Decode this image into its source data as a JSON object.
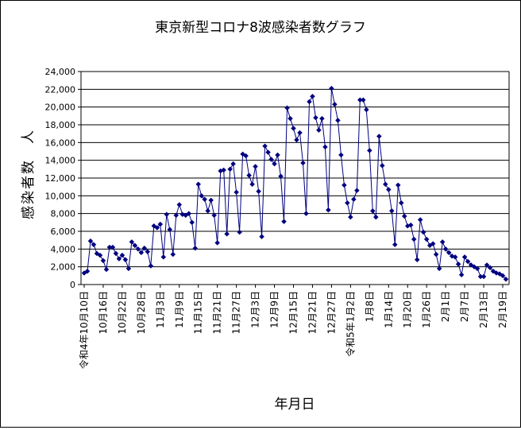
{
  "chart_data": {
    "type": "line",
    "title": "東京新型コロナ8波感染者数グラフ",
    "xlabel": "年月日",
    "ylabel": "感染者数　人",
    "ylim": [
      0,
      24000
    ],
    "yticks": [
      "0",
      "2,000",
      "4,000",
      "6,000",
      "8,000",
      "10,000",
      "12,000",
      "14,000",
      "16,000",
      "18,000",
      "20,000",
      "22,000",
      "24,000"
    ],
    "xtick_labels": [
      "令和4年10月10日",
      "10月16日",
      "10月22日",
      "10月28日",
      "11月3日",
      "11月9日",
      "11月15日",
      "11月21日",
      "11月27日",
      "12月3日",
      "12月9日",
      "12月15日",
      "12月21日",
      "12月27日",
      "令和5年1月2日",
      "1月8日",
      "1月14日",
      "1月20日",
      "1月26日",
      "2月1日",
      "2月7日",
      "2月13日",
      "2月19日"
    ],
    "grid": "horizontal",
    "legend": "none",
    "marker": "diamond",
    "color": "#000080",
    "series": [
      {
        "values": [
          1300,
          1500,
          4900,
          4500,
          3500,
          3300,
          2700,
          1700,
          4200,
          4200,
          3500,
          2900,
          3300,
          2800,
          1800,
          4800,
          4400,
          4000,
          3600,
          4100,
          3700,
          2100,
          6600,
          6400,
          6800,
          3100,
          7900,
          6200,
          3400,
          7800,
          9000,
          7900,
          7800,
          8000,
          7000,
          4100,
          11300,
          10000,
          9600,
          8300,
          9500,
          7800,
          4700,
          12800,
          12900,
          5700,
          13000,
          13600,
          10400,
          5900,
          14700,
          14500,
          12300,
          11300,
          13300,
          10500,
          5400,
          15600,
          14900,
          14100,
          13600,
          14600,
          12200,
          7100,
          19900,
          18700,
          17600,
          16300,
          17100,
          13700,
          8000,
          20600,
          21200,
          18800,
          17400,
          18700,
          15500,
          8400,
          22100,
          20300,
          18500,
          14600,
          11200,
          9200,
          7600,
          9600,
          10600,
          20800,
          20800,
          19700,
          15100,
          8300,
          7600,
          16700,
          13400,
          11300,
          10700,
          8300,
          4500,
          11200,
          9200,
          7700,
          6600,
          6700,
          5100,
          2800,
          7300,
          5900,
          5100,
          4400,
          4600,
          3400,
          1800,
          4800,
          4000,
          3600,
          3200,
          3100,
          2300,
          1100,
          3100,
          2600,
          2200,
          2000,
          1800,
          900,
          900,
          2200,
          1900,
          1500,
          1300,
          1200,
          1000,
          600
        ]
      }
    ]
  }
}
